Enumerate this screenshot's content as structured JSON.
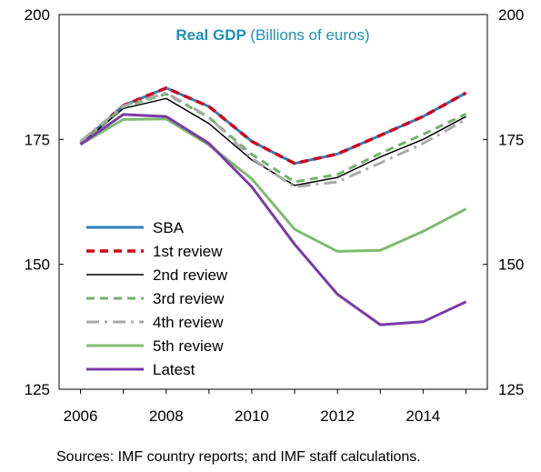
{
  "chart_data": {
    "type": "line",
    "title": "Real GDP",
    "title_suffix": "(Billions of euros)",
    "x": [
      2006,
      2007,
      2008,
      2009,
      2010,
      2011,
      2012,
      2013,
      2014,
      2015
    ],
    "x_ticks": [
      "2006",
      "2008",
      "2010",
      "2012",
      "2014"
    ],
    "x_tick_values": [
      2006,
      2008,
      2010,
      2012,
      2014
    ],
    "ylim": [
      125,
      200
    ],
    "y_ticks": [
      125,
      150,
      175,
      200
    ],
    "y_ticks_right": [
      125,
      150,
      175,
      200
    ],
    "grid": false,
    "legend_position": "left-bottom",
    "series": [
      {
        "name": "SBA",
        "color": "#2e7fb8",
        "dash": "solid",
        "width": 3,
        "values": [
          174.2,
          181.8,
          185.3,
          181.6,
          174.6,
          170.2,
          172.1,
          175.8,
          179.6,
          184.3
        ]
      },
      {
        "name": "1st review",
        "color": "#d0021b",
        "dash": "dashed",
        "width": 3.5,
        "values": [
          174.2,
          181.8,
          185.3,
          181.6,
          174.6,
          170.2,
          172.1,
          175.8,
          179.6,
          184.3
        ]
      },
      {
        "name": "2nd review",
        "color": "#000000",
        "dash": "solid",
        "width": 1.5,
        "values": [
          174.0,
          181.2,
          183.2,
          178.2,
          170.9,
          165.8,
          167.4,
          171.5,
          175.0,
          179.6
        ]
      },
      {
        "name": "3rd review",
        "color": "#70b46a",
        "dash": "dashed",
        "width": 3,
        "values": [
          174.2,
          181.5,
          184.1,
          179.4,
          172.0,
          166.5,
          168.0,
          172.2,
          176.0,
          180.1
        ]
      },
      {
        "name": "4th review",
        "color": "#aaaaaa",
        "dash": "dashdot",
        "width": 3,
        "values": [
          174.6,
          181.7,
          184.3,
          179.5,
          171.2,
          165.5,
          166.5,
          170.3,
          174.2,
          179.0
        ]
      },
      {
        "name": "5th review",
        "color": "#7dbb6e",
        "dash": "solid",
        "width": 3,
        "values": [
          174.0,
          179.0,
          179.1,
          173.9,
          167.1,
          157.0,
          152.6,
          152.8,
          156.6,
          161.1
        ]
      },
      {
        "name": "Latest",
        "color": "#7b3aa8",
        "dash": "solid",
        "width": 3,
        "values": [
          174.0,
          180.0,
          179.6,
          174.2,
          165.5,
          154.0,
          144.0,
          137.9,
          138.5,
          142.5
        ]
      }
    ]
  },
  "footer": {
    "source": "Sources: IMF country reports; and IMF staff calculations."
  }
}
